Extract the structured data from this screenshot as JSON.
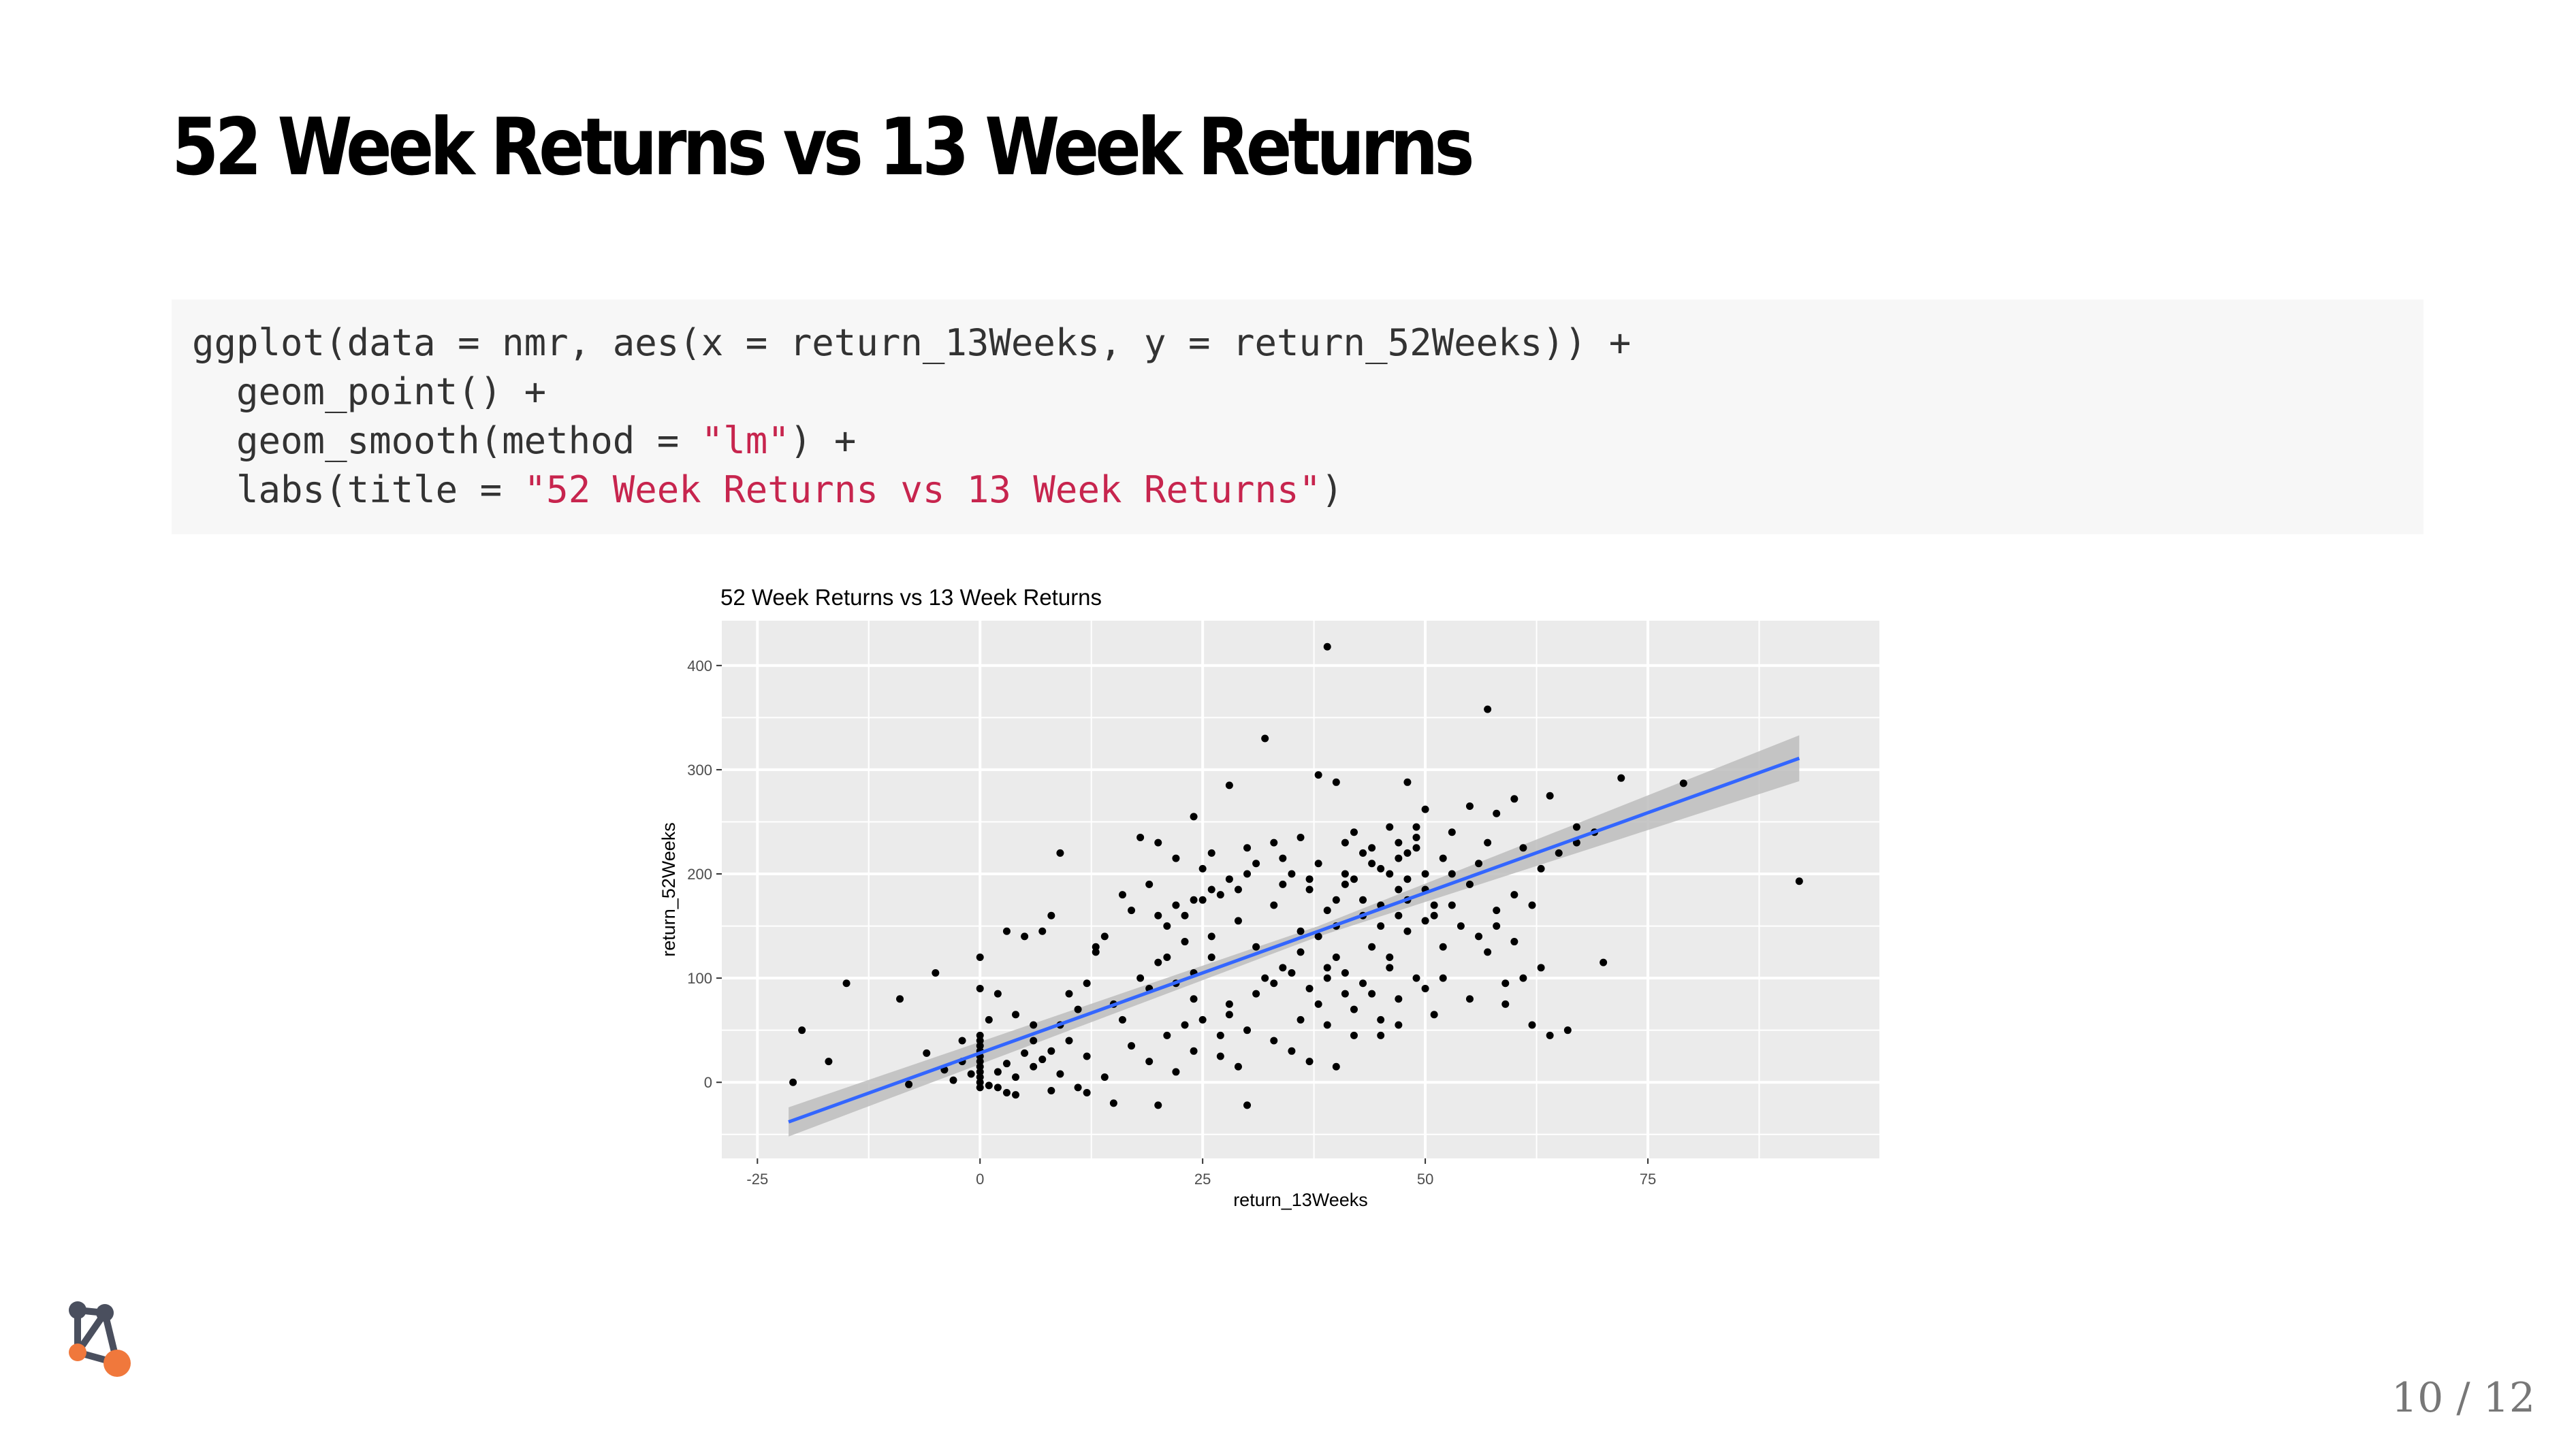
{
  "slide": {
    "title": "52 Week Returns vs 13 Week Returns",
    "page_number": "10 / 12"
  },
  "code": {
    "line1": "ggplot(data = nmr, aes(x = return_13Weeks, y = return_52Weeks)) +",
    "line2": "  geom_point() +",
    "line3_pre": "  geom_smooth(method = ",
    "line3_str": "\"lm\"",
    "line3_post": ") +",
    "line4_pre": "  labs(title = ",
    "line4_str": "\"52 Week Returns vs 13 Week Returns\"",
    "line4_post": ")"
  },
  "colors": {
    "panel_bg": "#ebebeb",
    "grid": "#ffffff",
    "point": "#000000",
    "smooth_line": "#3366ff",
    "ribbon": "#bdbdbd",
    "code_string": "#c7254e",
    "logo_dark": "#4a4f5e",
    "logo_accent": "#f0783c"
  },
  "logo": {
    "icon": "network-graph-logo-icon"
  },
  "chart_data": {
    "type": "scatter",
    "title": "52 Week Returns vs 13 Week Returns",
    "xlabel": "return_13Weeks",
    "ylabel": "return_52Weeks",
    "xlim": [
      -29,
      101
    ],
    "ylim": [
      -73,
      443
    ],
    "x_ticks": [
      -25,
      0,
      25,
      50,
      75
    ],
    "y_ticks": [
      0,
      100,
      200,
      300,
      400
    ],
    "grid": true,
    "smooth": {
      "method": "lm",
      "line": [
        [
          -21.5,
          -38
        ],
        [
          92,
          311
        ]
      ],
      "ribbon_halfwidth": [
        [
          -21.5,
          14
        ],
        [
          38,
          5
        ],
        [
          92,
          22
        ]
      ]
    },
    "points": [
      [
        39,
        418
      ],
      [
        57,
        358
      ],
      [
        32,
        330
      ],
      [
        38,
        295
      ],
      [
        40,
        288
      ],
      [
        28,
        285
      ],
      [
        48,
        288
      ],
      [
        72,
        292
      ],
      [
        79,
        287
      ],
      [
        64,
        275
      ],
      [
        60,
        272
      ],
      [
        55,
        265
      ],
      [
        58,
        258
      ],
      [
        50,
        262
      ],
      [
        24,
        255
      ],
      [
        46,
        245
      ],
      [
        42,
        240
      ],
      [
        36,
        235
      ],
      [
        33,
        230
      ],
      [
        30,
        225
      ],
      [
        26,
        220
      ],
      [
        22,
        215
      ],
      [
        9,
        220
      ],
      [
        18,
        235
      ],
      [
        20,
        230
      ],
      [
        44,
        225
      ],
      [
        48,
        220
      ],
      [
        52,
        215
      ],
      [
        56,
        210
      ],
      [
        61,
        225
      ],
      [
        63,
        205
      ],
      [
        67,
        245
      ],
      [
        69,
        240
      ],
      [
        49,
        235
      ],
      [
        45,
        205
      ],
      [
        41,
        200
      ],
      [
        37,
        195
      ],
      [
        34,
        190
      ],
      [
        29,
        185
      ],
      [
        27,
        180
      ],
      [
        25,
        175
      ],
      [
        23,
        160
      ],
      [
        21,
        150
      ],
      [
        17,
        165
      ],
      [
        14,
        140
      ],
      [
        13,
        125
      ],
      [
        8,
        160
      ],
      [
        7,
        145
      ],
      [
        3,
        145
      ],
      [
        5,
        140
      ],
      [
        0,
        120
      ],
      [
        -5,
        105
      ],
      [
        -9,
        80
      ],
      [
        -15,
        95
      ],
      [
        -20,
        50
      ],
      [
        -17,
        20
      ],
      [
        -21,
        0
      ],
      [
        -2,
        20
      ],
      [
        1,
        60
      ],
      [
        2,
        85
      ],
      [
        0,
        90
      ],
      [
        4,
        65
      ],
      [
        6,
        40
      ],
      [
        9,
        55
      ],
      [
        11,
        70
      ],
      [
        16,
        60
      ],
      [
        12,
        95
      ],
      [
        19,
        90
      ],
      [
        24,
        80
      ],
      [
        28,
        65
      ],
      [
        30,
        50
      ],
      [
        33,
        40
      ],
      [
        35,
        30
      ],
      [
        37,
        20
      ],
      [
        40,
        15
      ],
      [
        42,
        70
      ],
      [
        45,
        60
      ],
      [
        47,
        55
      ],
      [
        50,
        90
      ],
      [
        52,
        100
      ],
      [
        55,
        80
      ],
      [
        58,
        150
      ],
      [
        60,
        135
      ],
      [
        62,
        55
      ],
      [
        64,
        45
      ],
      [
        66,
        50
      ],
      [
        70,
        115
      ],
      [
        92,
        193
      ],
      [
        26,
        120
      ],
      [
        31,
        130
      ],
      [
        39,
        165
      ],
      [
        43,
        175
      ],
      [
        47,
        185
      ],
      [
        51,
        160
      ],
      [
        53,
        170
      ],
      [
        24,
        105
      ],
      [
        22,
        95
      ],
      [
        20,
        115
      ],
      [
        18,
        100
      ],
      [
        15,
        75
      ],
      [
        10,
        85
      ],
      [
        8,
        30
      ],
      [
        6,
        15
      ],
      [
        4,
        5
      ],
      [
        2,
        10
      ],
      [
        0,
        0
      ],
      [
        0,
        5
      ],
      [
        0,
        10
      ],
      [
        0,
        15
      ],
      [
        0,
        20
      ],
      [
        0,
        25
      ],
      [
        0,
        30
      ],
      [
        0,
        35
      ],
      [
        0,
        40
      ],
      [
        0,
        45
      ],
      [
        0,
        -5
      ],
      [
        -1,
        8
      ],
      [
        -3,
        2
      ],
      [
        -4,
        12
      ],
      [
        1,
        -3
      ],
      [
        3,
        18
      ],
      [
        5,
        28
      ],
      [
        7,
        22
      ],
      [
        9,
        8
      ],
      [
        11,
        -5
      ],
      [
        15,
        -20
      ],
      [
        20,
        -22
      ],
      [
        30,
        -22
      ],
      [
        27,
        25
      ],
      [
        29,
        15
      ],
      [
        32,
        100
      ],
      [
        34,
        110
      ],
      [
        36,
        125
      ],
      [
        38,
        140
      ],
      [
        40,
        150
      ],
      [
        44,
        130
      ],
      [
        46,
        120
      ],
      [
        48,
        145
      ],
      [
        50,
        155
      ],
      [
        43,
        95
      ],
      [
        41,
        85
      ],
      [
        39,
        110
      ],
      [
        46,
        200
      ],
      [
        48,
        195
      ],
      [
        50,
        185
      ],
      [
        53,
        240
      ],
      [
        57,
        230
      ],
      [
        35,
        200
      ],
      [
        31,
        210
      ],
      [
        25,
        205
      ],
      [
        19,
        190
      ],
      [
        16,
        180
      ],
      [
        13,
        130
      ],
      [
        21,
        120
      ],
      [
        23,
        135
      ],
      [
        26,
        140
      ],
      [
        29,
        155
      ],
      [
        33,
        170
      ],
      [
        37,
        185
      ],
      [
        41,
        190
      ],
      [
        44,
        210
      ],
      [
        47,
        230
      ],
      [
        49,
        245
      ],
      [
        35,
        105
      ],
      [
        33,
        95
      ],
      [
        31,
        85
      ],
      [
        28,
        75
      ],
      [
        25,
        60
      ],
      [
        23,
        55
      ],
      [
        21,
        45
      ],
      [
        17,
        35
      ],
      [
        12,
        25
      ],
      [
        10,
        40
      ],
      [
        6,
        55
      ],
      [
        -8,
        -2
      ],
      [
        -6,
        28
      ],
      [
        -2,
        40
      ],
      [
        3,
        -10
      ],
      [
        45,
        150
      ],
      [
        47,
        160
      ],
      [
        51,
        170
      ],
      [
        43,
        160
      ],
      [
        40,
        120
      ],
      [
        38,
        75
      ],
      [
        36,
        60
      ],
      [
        42,
        45
      ],
      [
        47,
        80
      ],
      [
        49,
        100
      ],
      [
        51,
        65
      ],
      [
        45,
        45
      ],
      [
        46,
        110
      ],
      [
        44,
        85
      ],
      [
        52,
        130
      ],
      [
        54,
        150
      ],
      [
        56,
        140
      ],
      [
        59,
        95
      ],
      [
        57,
        125
      ],
      [
        39,
        55
      ],
      [
        37,
        90
      ],
      [
        27,
        45
      ],
      [
        24,
        30
      ],
      [
        22,
        10
      ],
      [
        19,
        20
      ],
      [
        14,
        5
      ],
      [
        12,
        -10
      ],
      [
        8,
        -8
      ],
      [
        4,
        -12
      ],
      [
        2,
        -5
      ],
      [
        40,
        175
      ],
      [
        42,
        195
      ],
      [
        38,
        210
      ],
      [
        34,
        215
      ],
      [
        30,
        200
      ],
      [
        28,
        195
      ],
      [
        26,
        185
      ],
      [
        24,
        175
      ],
      [
        22,
        170
      ],
      [
        20,
        160
      ],
      [
        36,
        145
      ],
      [
        45,
        170
      ],
      [
        48,
        175
      ],
      [
        50,
        200
      ],
      [
        47,
        215
      ],
      [
        49,
        225
      ],
      [
        43,
        220
      ],
      [
        41,
        230
      ],
      [
        53,
        200
      ],
      [
        55,
        190
      ],
      [
        60,
        180
      ],
      [
        62,
        170
      ],
      [
        58,
        165
      ],
      [
        65,
        220
      ],
      [
        67,
        230
      ],
      [
        61,
        100
      ],
      [
        63,
        110
      ],
      [
        59,
        75
      ],
      [
        39,
        100
      ],
      [
        41,
        105
      ]
    ]
  }
}
